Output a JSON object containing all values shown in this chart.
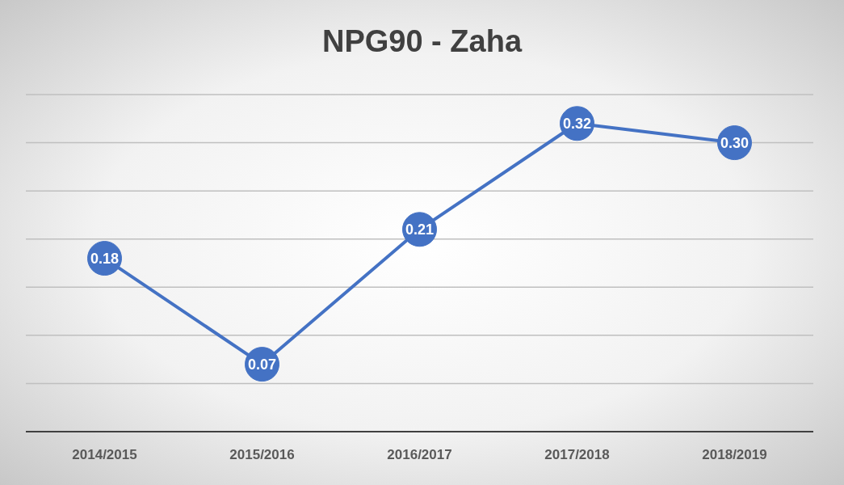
{
  "chart_data": {
    "type": "line",
    "title": "NPG90 - Zaha",
    "categories": [
      "2014/2015",
      "2015/2016",
      "2016/2017",
      "2017/2018",
      "2018/2019"
    ],
    "series": [
      {
        "color": "#4472c4",
        "values": [
          0.18,
          0.07,
          0.21,
          0.32,
          0.3
        ],
        "value_labels": [
          "0.18",
          "0.07",
          "0.21",
          "0.32",
          "0.30"
        ]
      }
    ],
    "ylim": [
      0,
      0.35
    ],
    "yticks": [
      {
        "value": 0,
        "label": null
      },
      {
        "value": 0.05,
        "label": null
      },
      {
        "value": 0.1,
        "label": null
      },
      {
        "value": 0.15,
        "label": null
      },
      {
        "value": 0.2,
        "label": null
      },
      {
        "value": 0.25,
        "label": null
      },
      {
        "value": 0.3,
        "label": null
      },
      {
        "value": 0.35,
        "label": null
      }
    ],
    "tick_labels": "x",
    "grid": "y",
    "marker": "circle",
    "line_style": "solid"
  }
}
